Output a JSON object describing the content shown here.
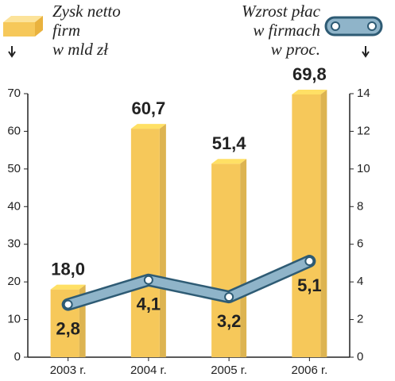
{
  "chart_data": {
    "type": "bar-line",
    "categories": [
      "2003 r.",
      "2004 r.",
      "2005 r.",
      "2006 r."
    ],
    "series": [
      {
        "name": "Zysk netto\nfirm\nw mld zł",
        "type": "bar",
        "color": "#f6c85a",
        "values": [
          18.0,
          60.7,
          51.4,
          69.8
        ],
        "value_labels": [
          "18,0",
          "60,7",
          "51,4",
          "69,8"
        ]
      },
      {
        "name": "Wzrost płac\nw firmach\nw proc.",
        "type": "line",
        "axis": "y2",
        "color": "#8fb4c9",
        "values": [
          2.8,
          4.1,
          3.2,
          5.1
        ],
        "value_labels": [
          "2,8",
          "4,1",
          "3,2",
          "5,1"
        ]
      }
    ],
    "ylim": [
      0,
      70
    ],
    "yticks": [
      0,
      10,
      20,
      30,
      40,
      50,
      60,
      70
    ],
    "y2lim": [
      0,
      14
    ],
    "y2ticks": [
      0,
      2,
      4,
      6,
      8,
      10,
      12,
      14
    ],
    "grid": false
  }
}
